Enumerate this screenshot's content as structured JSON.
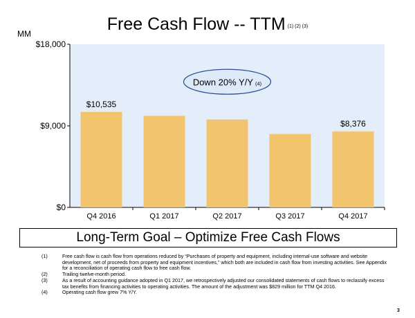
{
  "title": "Free Cash Flow -- TTM",
  "title_notes": "(1) (2) (3)",
  "unit_label": "MM",
  "callout": {
    "text": "Down 20% Y/Y",
    "note": "(4)"
  },
  "goal": "Long-Term Goal – Optimize Free Cash Flows",
  "footnotes": [
    {
      "num": "(1)",
      "text": "Free cash flow is cash flow from operations reduced by “Purchases of property and equipment, including internal-use software and website development, net of proceeds from property and equipment incentives,” which both are included in cash flow from investing activities. See Appendix for a reconciliation of operating cash flow to free cash flow."
    },
    {
      "num": "(2)",
      "text": "Trailing twelve-month period."
    },
    {
      "num": "(3)",
      "text": "As a result of accounting guidance adopted in Q1 2017, we retrospectively adjusted our consolidated statements of cash flows to reclassify excess tax benefits from financing activities to operating activities. The amount of the adjustment was $829 million for TTM Q4 2016."
    },
    {
      "num": "(4)",
      "text": "Operating cash flow grew 7% Y/Y."
    }
  ],
  "page_number": "3",
  "chart_data": {
    "type": "bar",
    "categories": [
      "Q4 2016",
      "Q1 2017",
      "Q2 2017",
      "Q3 2017",
      "Q4 2017"
    ],
    "values": [
      10535,
      10100,
      9700,
      8100,
      8376
    ],
    "data_labels": [
      "$10,535",
      "",
      "",
      "",
      "$8,376"
    ],
    "ylim": [
      0,
      18000
    ],
    "yticks": [
      0,
      9000,
      18000
    ],
    "ytick_labels": [
      "$0",
      "$9,000",
      "$18,000"
    ],
    "grid": false,
    "colors": {
      "bar": "#F2C46D",
      "plot_background": "#E3EEFA",
      "callout_fill": "#DDEAF8",
      "callout_border": "#2B4C9A"
    }
  }
}
